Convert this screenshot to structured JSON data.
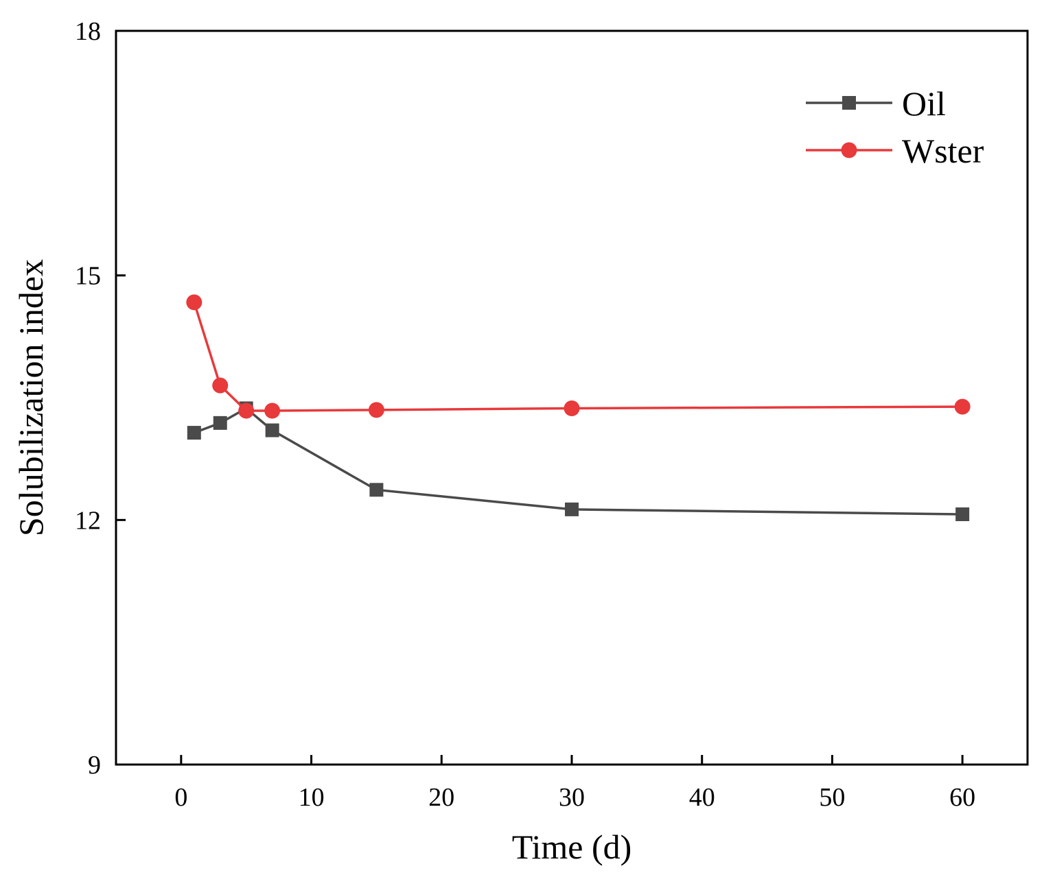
{
  "chart_data": {
    "type": "line",
    "title": "",
    "xlabel": "Time (d)",
    "ylabel": "Solubilization index",
    "xlim": [
      -5,
      65
    ],
    "ylim": [
      9,
      18
    ],
    "xticks": [
      0,
      10,
      20,
      30,
      40,
      50,
      60
    ],
    "yticks": [
      9,
      12,
      15,
      18
    ],
    "xtick_labels": [
      "0",
      "10",
      "20",
      "30",
      "40",
      "50",
      "60"
    ],
    "ytick_labels": [
      "9",
      "12",
      "15",
      "18"
    ],
    "grid": false,
    "legend_position": "top-right",
    "series": [
      {
        "name": "Oil",
        "color": "#4a4a4a",
        "marker": "square",
        "x": [
          1,
          3,
          5,
          7,
          15,
          30,
          60
        ],
        "y": [
          13.07,
          13.19,
          13.37,
          13.1,
          12.37,
          12.13,
          12.07
        ]
      },
      {
        "name": "Wster",
        "color": "#e8393b",
        "marker": "circle",
        "x": [
          1,
          3,
          5,
          7,
          15,
          30,
          60
        ],
        "y": [
          14.67,
          13.65,
          13.34,
          13.34,
          13.35,
          13.37,
          13.39
        ]
      }
    ]
  }
}
